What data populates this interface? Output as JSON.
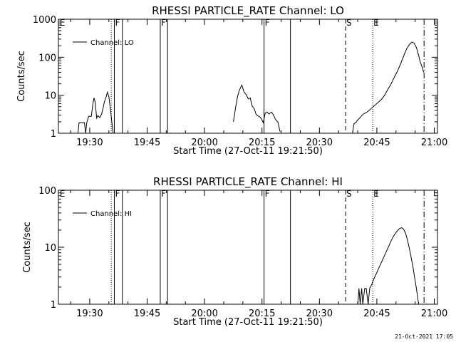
{
  "footer": "21-Oct-2021 17:05",
  "chart_data": [
    {
      "type": "line",
      "title": "RHESSI PARTICLE_RATE Channel: LO",
      "xlabel": "Start Time (27-Oct-11 19:21:50)",
      "ylabel": "Counts/sec",
      "x_units": "minutes since 19:21:50",
      "xlim": [
        0,
        99
      ],
      "ylim": [
        1,
        1000
      ],
      "yscale": "log",
      "xticks": [
        {
          "value": 8.17,
          "label": "19:30"
        },
        {
          "value": 23.17,
          "label": "19:45"
        },
        {
          "value": 38.17,
          "label": "20:00"
        },
        {
          "value": 53.17,
          "label": "20:15"
        },
        {
          "value": 68.17,
          "label": "20:30"
        },
        {
          "value": 83.17,
          "label": "20:45"
        },
        {
          "value": 98.17,
          "label": "21:00"
        }
      ],
      "yticks": [
        {
          "value": 1,
          "label": "1"
        },
        {
          "value": 10,
          "label": "10"
        },
        {
          "value": 100,
          "label": "100"
        },
        {
          "value": 1000,
          "label": "1000"
        }
      ],
      "legend": {
        "label": "Channel: LO",
        "position": "top-left"
      },
      "markers": [
        {
          "x": 0.15,
          "label": "E",
          "style": "solid-edge"
        },
        {
          "x": 13.8,
          "label": "",
          "style": "dotted"
        },
        {
          "x": 14.6,
          "label": "F",
          "style": "solid"
        },
        {
          "x": 16.7,
          "label": "",
          "style": "solid"
        },
        {
          "x": 26.6,
          "label": "F",
          "style": "solid"
        },
        {
          "x": 28.5,
          "label": "",
          "style": "solid"
        },
        {
          "x": 53.7,
          "label": "F",
          "style": "solid"
        },
        {
          "x": 60.6,
          "label": "",
          "style": "solid"
        },
        {
          "x": 75.0,
          "label": "S",
          "style": "dashed"
        },
        {
          "x": 82.1,
          "label": "E",
          "style": "dotted"
        },
        {
          "x": 95.5,
          "label": "",
          "style": "dashdot"
        }
      ],
      "series": [
        {
          "name": "Channel: LO",
          "segments": [
            [
              [
                5.1,
                1
              ],
              [
                5.4,
                1.9
              ],
              [
                6.2,
                1.9
              ],
              [
                6.8,
                1.9
              ],
              [
                7.1,
                1
              ],
              [
                7.4,
                1.9
              ],
              [
                7.9,
                2.8
              ],
              [
                8.6,
                2.8
              ],
              [
                9.0,
                6
              ],
              [
                9.3,
                8.5
              ],
              [
                9.6,
                6.5
              ],
              [
                10.0,
                2.5
              ],
              [
                10.3,
                2.9
              ],
              [
                10.8,
                2.6
              ],
              [
                11.3,
                3.2
              ],
              [
                11.7,
                4.8
              ],
              [
                12.0,
                6.7
              ],
              [
                12.4,
                8.6
              ],
              [
                12.8,
                12
              ],
              [
                13.2,
                9
              ],
              [
                13.6,
                4.1
              ],
              [
                14.0,
                1.8
              ],
              [
                14.3,
                1
              ]
            ],
            [
              [
                45.7,
                2
              ],
              [
                46.2,
                4.3
              ],
              [
                46.8,
                9.5
              ],
              [
                47.3,
                14
              ],
              [
                47.9,
                18.5
              ],
              [
                48.5,
                12
              ],
              [
                49.0,
                10.5
              ],
              [
                49.6,
                8
              ],
              [
                50.1,
                8.5
              ],
              [
                50.6,
                5.2
              ],
              [
                51.2,
                4.3
              ],
              [
                51.6,
                3.2
              ],
              [
                52.0,
                2.9
              ],
              [
                52.6,
                2.7
              ],
              [
                53.0,
                2.4
              ],
              [
                53.5,
                1.9
              ],
              [
                54.0,
                3.4
              ],
              [
                54.5,
                3.6
              ],
              [
                55.0,
                3.2
              ],
              [
                55.6,
                3.6
              ],
              [
                56.1,
                3.1
              ],
              [
                56.7,
                2.3
              ],
              [
                57.3,
                2
              ],
              [
                57.9,
                1.1
              ]
            ],
            [
              [
                76.8,
                1
              ],
              [
                77.2,
                1.8
              ],
              [
                77.7,
                1.9
              ],
              [
                78.1,
                2.2
              ],
              [
                78.8,
                2.6
              ],
              [
                79.6,
                3.2
              ],
              [
                80.4,
                3.5
              ],
              [
                81.2,
                4
              ],
              [
                82.0,
                4.8
              ],
              [
                82.8,
                5.6
              ],
              [
                83.6,
                6.6
              ],
              [
                84.4,
                7.8
              ],
              [
                85.2,
                10
              ],
              [
                86.0,
                14
              ],
              [
                86.8,
                19
              ],
              [
                87.6,
                28
              ],
              [
                88.5,
                42
              ],
              [
                89.4,
                68
              ],
              [
                90.2,
                110
              ],
              [
                91.0,
                170
              ],
              [
                91.8,
                225
              ],
              [
                92.3,
                250
              ],
              [
                92.9,
                235
              ],
              [
                93.5,
                180
              ],
              [
                94.0,
                120
              ],
              [
                94.5,
                75
              ],
              [
                95.0,
                55
              ],
              [
                95.4,
                40
              ]
            ]
          ]
        }
      ]
    },
    {
      "type": "line",
      "title": "RHESSI PARTICLE_RATE Channel: HI",
      "xlabel": "Start Time (27-Oct-11 19:21:50)",
      "ylabel": "Counts/sec",
      "x_units": "minutes since 19:21:50",
      "xlim": [
        0,
        99
      ],
      "ylim": [
        1,
        100
      ],
      "yscale": "log",
      "xticks": [
        {
          "value": 8.17,
          "label": "19:30"
        },
        {
          "value": 23.17,
          "label": "19:45"
        },
        {
          "value": 38.17,
          "label": "20:00"
        },
        {
          "value": 53.17,
          "label": "20:15"
        },
        {
          "value": 68.17,
          "label": "20:30"
        },
        {
          "value": 83.17,
          "label": "20:45"
        },
        {
          "value": 98.17,
          "label": "21:00"
        }
      ],
      "yticks": [
        {
          "value": 1,
          "label": "1"
        },
        {
          "value": 10,
          "label": "10"
        },
        {
          "value": 100,
          "label": "100"
        }
      ],
      "legend": {
        "label": "Channel: HI",
        "position": "top-left"
      },
      "markers": [
        {
          "x": 0.15,
          "label": "E",
          "style": "solid-edge"
        },
        {
          "x": 13.8,
          "label": "",
          "style": "dotted"
        },
        {
          "x": 14.6,
          "label": "F",
          "style": "solid"
        },
        {
          "x": 16.7,
          "label": "",
          "style": "solid"
        },
        {
          "x": 26.6,
          "label": "F",
          "style": "solid"
        },
        {
          "x": 28.5,
          "label": "",
          "style": "solid"
        },
        {
          "x": 53.7,
          "label": "F",
          "style": "solid"
        },
        {
          "x": 60.6,
          "label": "",
          "style": "solid"
        },
        {
          "x": 75.0,
          "label": "S",
          "style": "dashed"
        },
        {
          "x": 82.1,
          "label": "E",
          "style": "dotted"
        },
        {
          "x": 95.5,
          "label": "",
          "style": "dashdot"
        }
      ],
      "series": [
        {
          "name": "Channel: HI",
          "segments": [
            [
              [
                78.2,
                1
              ],
              [
                78.5,
                1.9
              ],
              [
                78.8,
                1
              ],
              [
                79.2,
                1.9
              ],
              [
                79.5,
                1
              ],
              [
                80.0,
                1.9
              ],
              [
                80.4,
                1.9
              ],
              [
                80.9,
                1
              ],
              [
                81.3,
                1.9
              ],
              [
                81.8,
                2.2
              ],
              [
                82.3,
                2.7
              ],
              [
                82.9,
                3.3
              ],
              [
                83.6,
                4.2
              ],
              [
                84.4,
                5.5
              ],
              [
                85.2,
                7.2
              ],
              [
                86.0,
                9.5
              ],
              [
                86.8,
                12.5
              ],
              [
                87.6,
                16
              ],
              [
                88.4,
                19
              ],
              [
                89.0,
                21
              ],
              [
                89.6,
                22
              ],
              [
                90.1,
                21
              ],
              [
                90.6,
                18
              ],
              [
                91.1,
                14
              ],
              [
                91.6,
                10
              ],
              [
                92.1,
                6.8
              ],
              [
                92.6,
                4.5
              ],
              [
                93.0,
                3
              ],
              [
                93.5,
                1.9
              ],
              [
                93.9,
                1.2
              ],
              [
                94.1,
                1
              ]
            ]
          ]
        }
      ]
    }
  ]
}
